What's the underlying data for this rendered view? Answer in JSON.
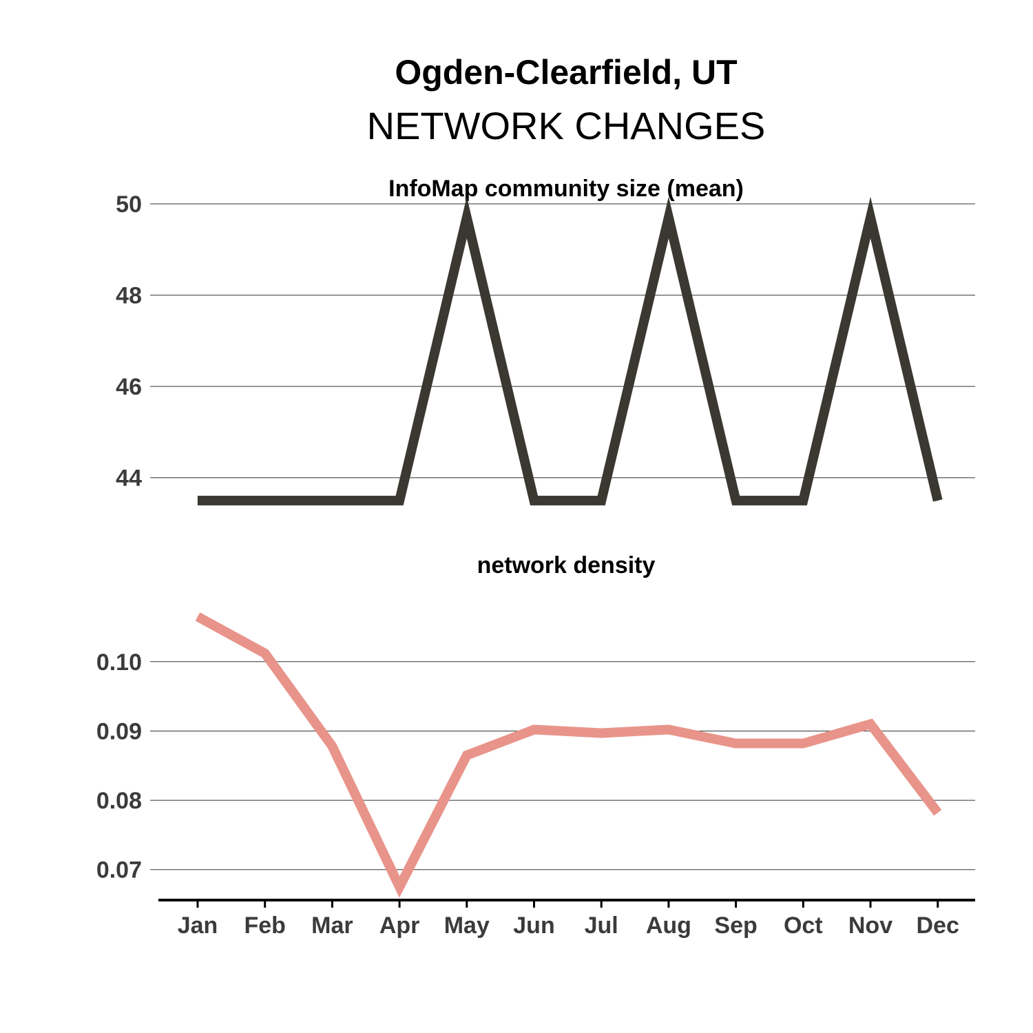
{
  "title": "Ogden-Clearfield, UT",
  "subtitle": "NETWORK CHANGES",
  "chart_data": [
    {
      "type": "line",
      "title": "InfoMap community size (mean)",
      "categories": [
        "Jan",
        "Feb",
        "Mar",
        "Apr",
        "May",
        "Jun",
        "Jul",
        "Aug",
        "Sep",
        "Oct",
        "Nov",
        "Dec"
      ],
      "values": [
        43.5,
        43.5,
        43.5,
        43.5,
        49.7,
        43.5,
        43.5,
        49.7,
        43.5,
        43.5,
        49.7,
        43.5
      ],
      "yticks": [
        44,
        46,
        48,
        50
      ],
      "ytick_labels": [
        "44",
        "46",
        "48",
        "50"
      ],
      "ylim": [
        43.0,
        50.0
      ],
      "color": "#3a3830",
      "grid": true
    },
    {
      "type": "line",
      "title": "network density",
      "categories": [
        "Jan",
        "Feb",
        "Mar",
        "Apr",
        "May",
        "Jun",
        "Jul",
        "Aug",
        "Sep",
        "Oct",
        "Nov",
        "Dec"
      ],
      "values": [
        0.1065,
        0.1012,
        0.0878,
        0.0675,
        0.0865,
        0.0902,
        0.0897,
        0.0902,
        0.0882,
        0.0882,
        0.091,
        0.0782
      ],
      "yticks": [
        0.07,
        0.08,
        0.09,
        0.1
      ],
      "ytick_labels": [
        "0.07",
        "0.08",
        "0.09",
        "0.10"
      ],
      "ylim": [
        0.0656,
        0.1125
      ],
      "color": "#e8948a",
      "grid": true
    }
  ]
}
